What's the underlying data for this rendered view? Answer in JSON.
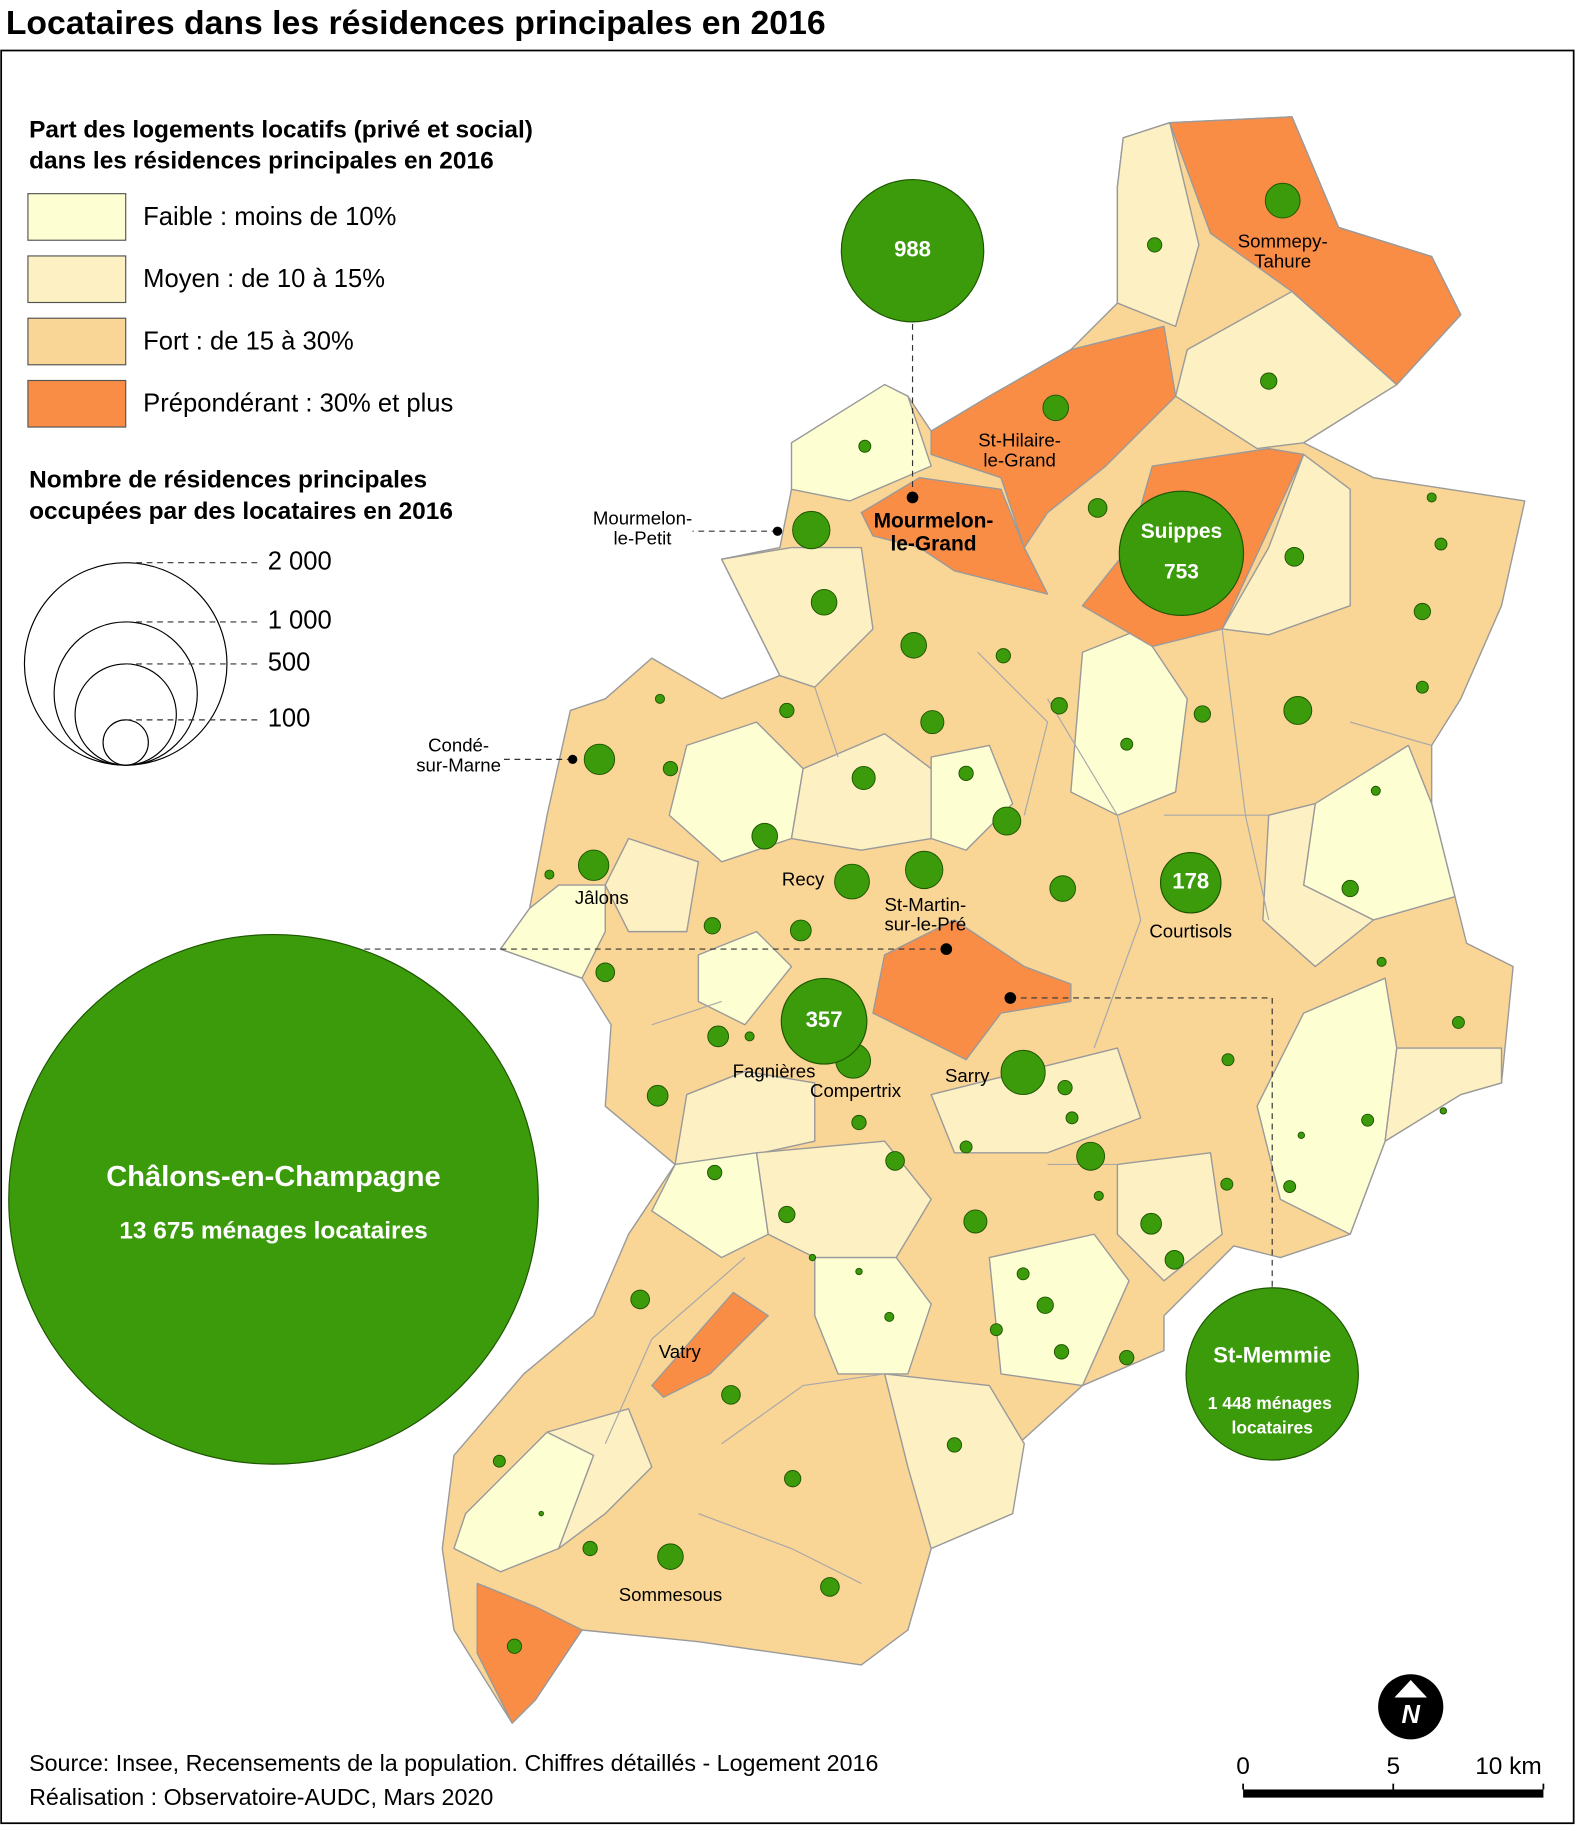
{
  "title": "Locataires dans les résidences principales en 2016",
  "legend": {
    "title": [
      "Part des logements locatifs (privé et social)",
      "dans les résidences principales en 2016"
    ],
    "classes": [
      {
        "label": "Faible : moins de 10%",
        "color": "#fefed3"
      },
      {
        "label": "Moyen : de 10 à 15%",
        "color": "#fdf0c2"
      },
      {
        "label": "Fort : de 15 à 30%",
        "color": "#f9d596"
      },
      {
        "label": "Prépondérant : 30% et plus",
        "color": "#f98d46"
      }
    ]
  },
  "bubble_legend": {
    "title": [
      "Nombre de résidences principales",
      "occupées par des locataires en 2016"
    ],
    "ticks": [
      {
        "value": 2000,
        "label": "2 000"
      },
      {
        "value": 1000,
        "label": "1 000"
      },
      500,
      100
    ]
  },
  "bubble_color": "#3b9b0b",
  "labeled_bubbles": [
    {
      "value": 988
    },
    {
      "name": "Suippes",
      "value": 753
    },
    {
      "value": 178
    },
    {
      "value": 357
    },
    {
      "name": "Châlons-en-Champagne",
      "value": 13675,
      "value_label": "13 675 ménages locataires"
    },
    {
      "name": "St-Memmie",
      "value": 1448,
      "value_label": "1 448 ménages locataires"
    }
  ],
  "rental_households": [
    59,
    10,
    13,
    32,
    7,
    68,
    17,
    17,
    4,
    7,
    13,
    7,
    32,
    32,
    10,
    13,
    13,
    38,
    10,
    26,
    4,
    10,
    7,
    45,
    10,
    26,
    4,
    38,
    32,
    59,
    68,
    45,
    4,
    13,
    32,
    13,
    21,
    4,
    17,
    7,
    21,
    4,
    59,
    95,
    21,
    7,
    10,
    10,
    2,
    7,
    2,
    7,
    7,
    38,
    17,
    10,
    7,
    7,
    4,
    13,
    26,
    21,
    2,
    2,
    17,
    17,
    7,
    4,
    13,
    7,
    10,
    10,
    17,
    10,
    7,
    13,
    1,
    10,
    32,
    17,
    10
  ],
  "places": [
    {
      "lines": [
        "Mourmelon-",
        "le-Petit"
      ]
    },
    {
      "lines": [
        "Condé-",
        "sur-Marne"
      ]
    },
    {
      "lines": [
        "Jâlons"
      ]
    },
    {
      "lines": [
        "Recy"
      ]
    },
    {
      "lines": [
        "St-Martin-",
        "sur-le-Pré"
      ]
    },
    {
      "lines": [
        "Courtisols"
      ]
    },
    {
      "lines": [
        "Fagnières"
      ]
    },
    {
      "lines": [
        "Compertrix"
      ]
    },
    {
      "lines": [
        "Sarry"
      ]
    },
    {
      "lines": [
        "Vatry"
      ]
    },
    {
      "lines": [
        "Sommesous"
      ]
    },
    {
      "lines": [
        "Sommepy-",
        "Tahure"
      ]
    },
    {
      "lines": [
        "St-Hilaire-",
        "le-Grand"
      ]
    },
    {
      "lines": [
        "Mourmelon-",
        "le-Grand"
      ],
      "bold": true
    }
  ],
  "north": "N",
  "scale_bar": {
    "ticks": [
      0,
      5,
      {
        "value": 10,
        "label": "10 km"
      }
    ]
  },
  "source": "Source: Insee, Recensements de la population. Chiffres détaillés - Logement 2016",
  "credit": "Réalisation : Observatoire-AUDC, Mars 2020"
}
